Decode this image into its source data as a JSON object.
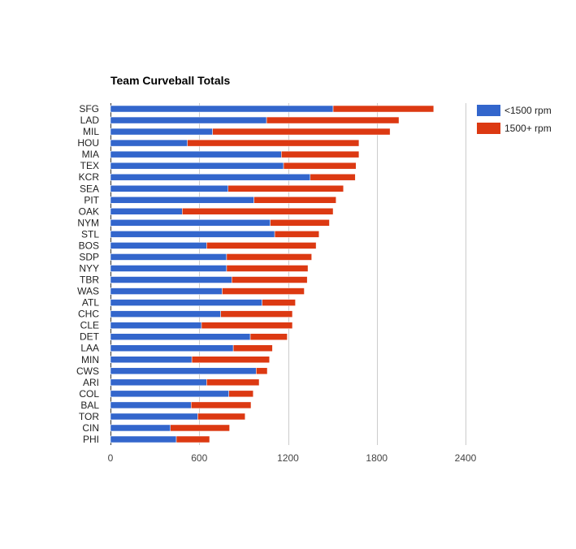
{
  "chart_data": {
    "type": "bar",
    "orientation": "horizontal",
    "stacked": true,
    "title": "Team Curveball Totals",
    "xlabel": "",
    "ylabel": "",
    "xlim": [
      0,
      2400
    ],
    "x_ticks": [
      0,
      600,
      1200,
      1800,
      2400
    ],
    "grid": true,
    "legend_position": "top-right",
    "categories": [
      "SFG",
      "LAD",
      "MIL",
      "HOU",
      "MIA",
      "TEX",
      "KCR",
      "SEA",
      "PIT",
      "OAK",
      "NYM",
      "STL",
      "BOS",
      "SDP",
      "NYY",
      "TBR",
      "WAS",
      "ATL",
      "CHC",
      "CLE",
      "DET",
      "LAA",
      "MIN",
      "CWS",
      "ARI",
      "COL",
      "BAL",
      "TOR",
      "CIN",
      "PHI"
    ],
    "series": [
      {
        "name": "<1500 rpm",
        "color": "#3366cc",
        "values": [
          1505,
          1055,
          690,
          520,
          1155,
          1170,
          1350,
          795,
          970,
          485,
          1080,
          1110,
          650,
          785,
          785,
          820,
          755,
          1025,
          745,
          615,
          945,
          830,
          550,
          985,
          650,
          800,
          545,
          590,
          405,
          445
        ]
      },
      {
        "name": "1500+ rpm",
        "color": "#dc3912",
        "values": [
          680,
          895,
          1200,
          1160,
          525,
          490,
          305,
          780,
          555,
          1020,
          400,
          300,
          740,
          575,
          550,
          510,
          555,
          225,
          485,
          615,
          250,
          265,
          525,
          75,
          355,
          165,
          405,
          320,
          400,
          225
        ]
      }
    ]
  }
}
